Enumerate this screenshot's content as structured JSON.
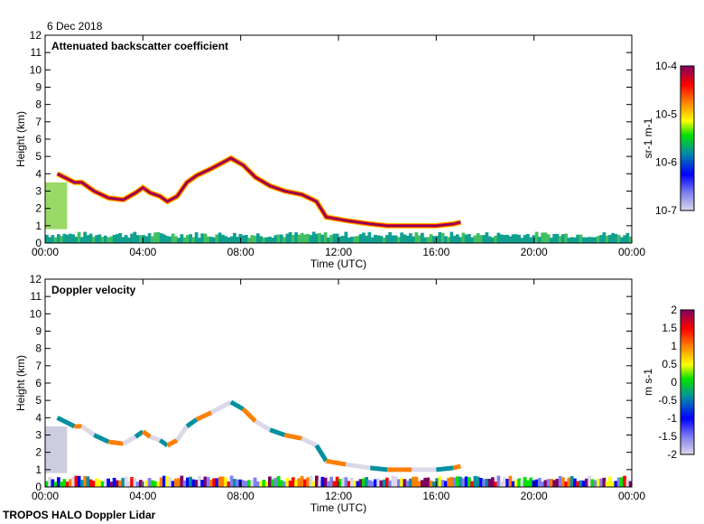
{
  "date": "6 Dec 2018",
  "footer": "TROPOS HALO Doppler Lidar",
  "chart_data": [
    {
      "type": "heatmap",
      "title": "Attenuated backscatter coefficient",
      "xlabel": "Time (UTC)",
      "ylabel": "Height (km)",
      "xlim": [
        0,
        24
      ],
      "ylim": [
        0,
        12
      ],
      "xticks": [
        "00:00",
        "04:00",
        "08:00",
        "12:00",
        "16:00",
        "20:00",
        "00:00"
      ],
      "yticks": [
        "0",
        "1",
        "2",
        "3",
        "4",
        "5",
        "6",
        "7",
        "8",
        "9",
        "10",
        "11",
        "12"
      ],
      "colorbar": {
        "label": "sr-1 m-1",
        "ticks": [
          "10-7",
          "10-6",
          "10-5",
          "10-4"
        ],
        "scale": "log",
        "range": [
          1e-07,
          0.0001
        ],
        "colors": [
          "#dcd8e8",
          "#8080f0",
          "#0000ff",
          "#0090a0",
          "#00e000",
          "#ffff00",
          "#ff8000",
          "#ff0000",
          "#800060"
        ]
      },
      "cloud_layer": [
        [
          0.5,
          4.0
        ],
        [
          1.2,
          3.5
        ],
        [
          1.5,
          3.5
        ],
        [
          2,
          3.0
        ],
        [
          2.6,
          2.6
        ],
        [
          3.2,
          2.5
        ],
        [
          3.7,
          2.9
        ],
        [
          4.0,
          3.2
        ],
        [
          4.3,
          2.9
        ],
        [
          4.7,
          2.7
        ],
        [
          5.0,
          2.4
        ],
        [
          5.4,
          2.7
        ],
        [
          5.8,
          3.5
        ],
        [
          6.2,
          3.9
        ],
        [
          6.8,
          4.3
        ],
        [
          7.6,
          4.9
        ],
        [
          8.1,
          4.5
        ],
        [
          8.6,
          3.8
        ],
        [
          9.2,
          3.3
        ],
        [
          9.8,
          3.0
        ],
        [
          10.5,
          2.8
        ],
        [
          11.1,
          2.4
        ],
        [
          11.5,
          1.5
        ],
        [
          12.3,
          1.3
        ],
        [
          13.3,
          1.1
        ],
        [
          14,
          1.0
        ],
        [
          15,
          1.0
        ],
        [
          16,
          1.0
        ],
        [
          16.7,
          1.1
        ],
        [
          17,
          1.2
        ]
      ],
      "boundary_layer_top_km": 0.6
    },
    {
      "type": "heatmap",
      "title": "Doppler velocity",
      "xlabel": "Time (UTC)",
      "ylabel": "Height (km)",
      "xlim": [
        0,
        24
      ],
      "ylim": [
        0,
        12
      ],
      "xticks": [
        "00:00",
        "04:00",
        "08:00",
        "12:00",
        "16:00",
        "20:00",
        "00:00"
      ],
      "yticks": [
        "0",
        "1",
        "2",
        "3",
        "4",
        "5",
        "6",
        "7",
        "8",
        "9",
        "10",
        "11",
        "12"
      ],
      "colorbar": {
        "label": "m s-1",
        "ticks": [
          "-2",
          "-1.5",
          "-1",
          "-0.5",
          "0",
          "0.5",
          "1",
          "1.5",
          "2"
        ],
        "scale": "linear",
        "range": [
          -2,
          2
        ],
        "colors": [
          "#dcd8e8",
          "#8080f0",
          "#0000ff",
          "#0090a0",
          "#00e000",
          "#ffff00",
          "#ff8000",
          "#ff0000",
          "#800060"
        ]
      }
    }
  ]
}
